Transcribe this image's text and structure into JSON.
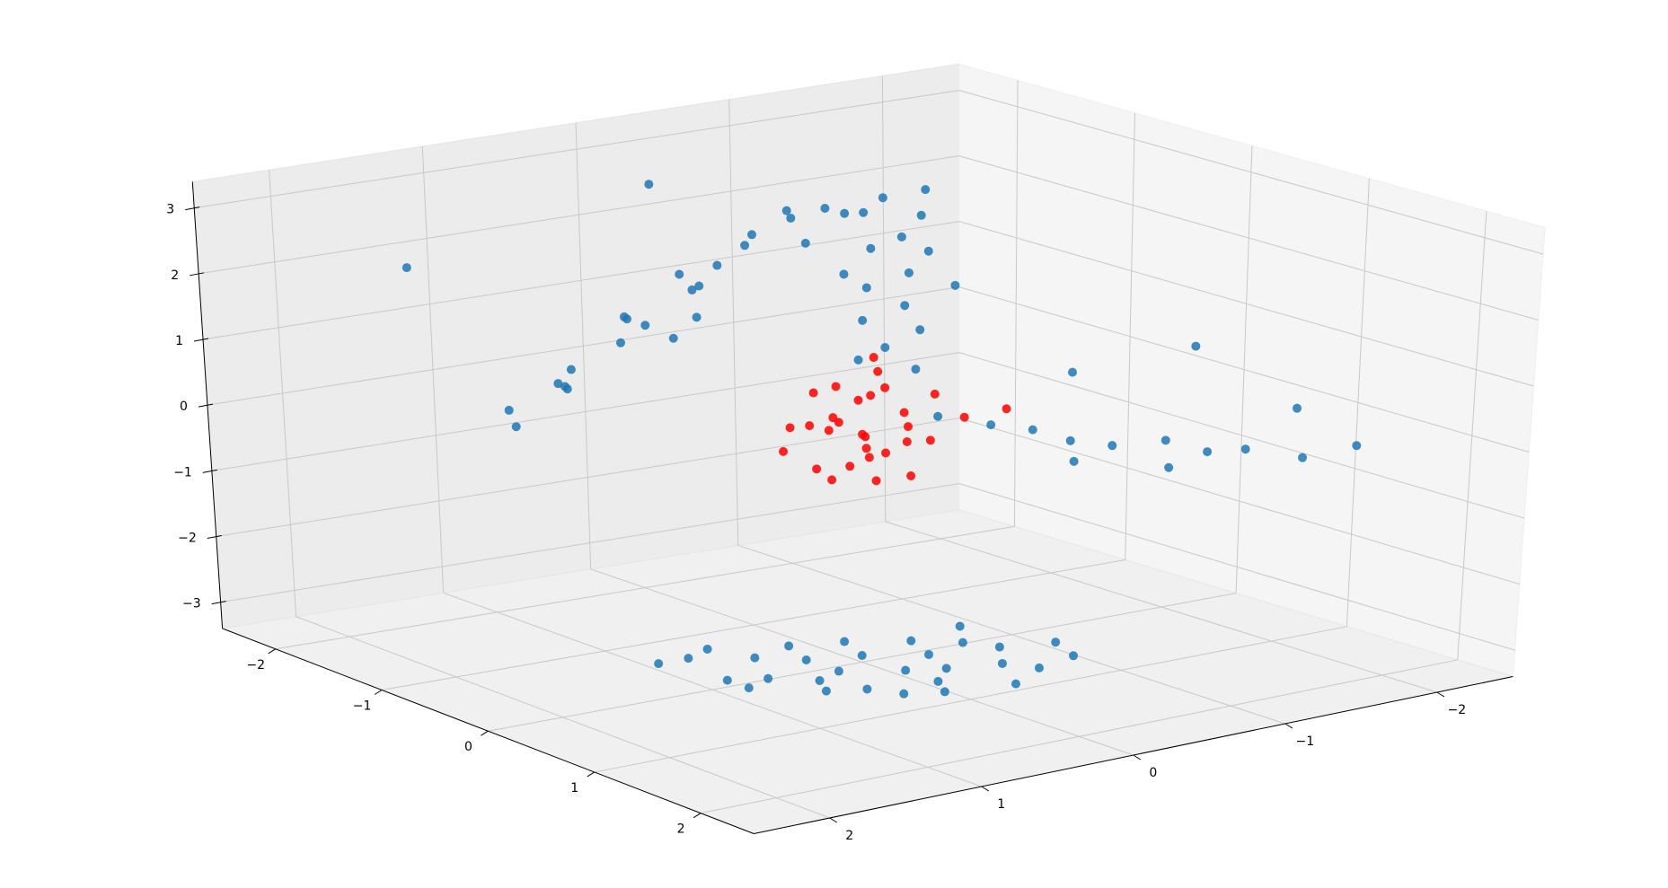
{
  "chart_data": {
    "type": "scatter3d",
    "grid": true,
    "xlim": [
      -2.5,
      2.5
    ],
    "ylim": [
      -2.5,
      2.5
    ],
    "zlim": [
      -3.4,
      3.4
    ],
    "xticks": [
      {
        "value": -2,
        "label": "−2"
      },
      {
        "value": -1,
        "label": "−1"
      },
      0,
      1,
      2
    ],
    "yticks": [
      {
        "value": -2,
        "label": "−2"
      },
      {
        "value": -1,
        "label": "−1"
      },
      0,
      1,
      2
    ],
    "zticks": [
      {
        "value": -3,
        "label": "−3"
      },
      {
        "value": -2,
        "label": "−2"
      },
      {
        "value": -1,
        "label": "−1"
      },
      0,
      1,
      2,
      3
    ],
    "series": [
      {
        "color": "#1f77b4",
        "x": [
          -1.4,
          -1.3,
          -1.2,
          -1.5,
          -1.1,
          -1.2,
          -1.0,
          -1.3,
          -1.0,
          -0.9,
          -1.1,
          -0.8,
          -0.9,
          -0.7,
          -0.8,
          -0.6,
          -0.7,
          -0.5,
          -0.4,
          -0.3,
          -0.4,
          -0.2,
          -0.1,
          -0.2,
          0.0,
          -0.1,
          0.1,
          0.0,
          0.1,
          0.2,
          0.1,
          0.2,
          -1.2,
          -0.6,
          -0.5,
          -0.3,
          -0.9,
          -1.0,
          -0.7,
          0.0,
          -2.0,
          -1.6,
          0.4,
          0.6,
          0.7,
          0.9,
          1.0,
          1.2,
          1.3,
          1.5,
          1.6,
          1.1,
          0.8,
          1.4,
          0.5,
          1.8,
          0.9,
          0.0,
          0.2,
          -0.3,
          0.5,
          0.8,
          -0.5,
          0.3,
          0.6,
          -0.1,
          0.9,
          0.1,
          -0.4,
          0.4,
          0.7,
          -0.2,
          0.0,
          0.5,
          1.0,
          -0.6,
          0.2,
          0.3,
          -0.3,
          0.6,
          0.8,
          -0.1,
          0.4,
          0.1,
          -0.5,
          0.7,
          0.2
        ],
        "y": [
          1.3,
          1.0,
          1.4,
          0.9,
          1.1,
          0.7,
          1.2,
          0.6,
          0.8,
          0.4,
          0.3,
          0.6,
          0.1,
          0.2,
          -0.1,
          -0.2,
          -0.4,
          -0.5,
          -0.3,
          -0.6,
          -0.7,
          -0.4,
          -0.5,
          -0.2,
          -0.3,
          -0.1,
          -0.2,
          0.0,
          -0.3,
          0.0,
          0.1,
          -0.2,
          0.2,
          0.5,
          0.0,
          -0.1,
          -0.2,
          0.5,
          0.9,
          -0.6,
          1.5,
          0.2,
          -0.2,
          -0.4,
          -0.6,
          -0.7,
          -0.9,
          -1.1,
          -1.3,
          -1.4,
          -1.7,
          -1.2,
          -0.8,
          -1.8,
          -1.0,
          -1.9,
          -1.5,
          0.0,
          0.3,
          0.5,
          -0.2,
          -0.6,
          0.8,
          -0.7,
          0.4,
          -0.4,
          0.1,
          0.7,
          0.2,
          0.0,
          -0.9,
          -0.8,
          0.9,
          0.6,
          -0.3,
          0.6,
          -0.3,
          0.5,
          -0.1,
          -0.5,
          0.3,
          0.3,
          -1.0,
          -0.6,
          1.0,
          0.0,
          0.9
        ],
        "z": [
          0.1,
          0.4,
          0.0,
          0.3,
          0.8,
          1.0,
          0.6,
          1.3,
          1.5,
          1.9,
          1.7,
          2.2,
          2.4,
          2.7,
          2.9,
          3.0,
          2.8,
          3.1,
          3.0,
          2.9,
          3.2,
          2.7,
          2.5,
          2.6,
          2.3,
          2.1,
          1.9,
          1.7,
          1.5,
          1.4,
          1.2,
          1.0,
          1.2,
          2.4,
          2.6,
          2.2,
          2.7,
          1.1,
          1.6,
          2.0,
          2.0,
          3.0,
          0.4,
          0.3,
          0.2,
          0.1,
          0.0,
          0.1,
          -0.1,
          0.0,
          -0.2,
          -0.4,
          -0.3,
          0.4,
          0.8,
          0.0,
          1.2,
          -3.3,
          -3.3,
          -3.3,
          -3.3,
          -3.3,
          -3.3,
          -3.3,
          -3.3,
          -3.3,
          -3.3,
          -3.3,
          -3.3,
          -3.3,
          -3.3,
          -3.3,
          -3.3,
          -3.3,
          -3.3,
          -3.3,
          -3.3,
          -3.3,
          -3.3,
          -3.3,
          -3.3,
          -3.3,
          -3.3,
          -3.3,
          -3.3,
          -3.3,
          -3.3
        ]
      },
      {
        "color": "#ff0000",
        "x": [
          0.0,
          0.2,
          -0.2,
          0.1,
          -0.1,
          0.3,
          -0.3,
          0.0,
          0.2,
          -0.2,
          0.1,
          0.0,
          0.1,
          -0.1,
          0.3,
          -0.3,
          0.4,
          -0.4,
          0.2,
          -0.1,
          0.1,
          0.0,
          0.3,
          -0.2,
          0.5,
          0.6,
          0.2,
          -0.3,
          0.0,
          0.4
        ],
        "y": [
          0.0,
          0.1,
          0.2,
          -0.2,
          -0.1,
          0.2,
          0.0,
          0.3,
          -0.3,
          -0.2,
          0.1,
          -0.1,
          0.0,
          0.1,
          -0.1,
          0.3,
          0.0,
          -0.1,
          0.3,
          0.4,
          -0.4,
          0.2,
          0.3,
          -0.3,
          -0.3,
          -0.5,
          0.0,
          0.1,
          -0.3,
          0.2
        ],
        "z": [
          0.0,
          -0.2,
          0.1,
          0.3,
          -0.3,
          0.2,
          -0.1,
          -0.4,
          -0.1,
          0.4,
          0.6,
          0.9,
          1.2,
          0.7,
          -0.5,
          -0.3,
          0.1,
          0.0,
          0.4,
          0.2,
          0.5,
          -0.6,
          -0.2,
          -0.5,
          0.4,
          0.5,
          0.8,
          0.5,
          0.0,
          -0.4
        ]
      }
    ]
  }
}
